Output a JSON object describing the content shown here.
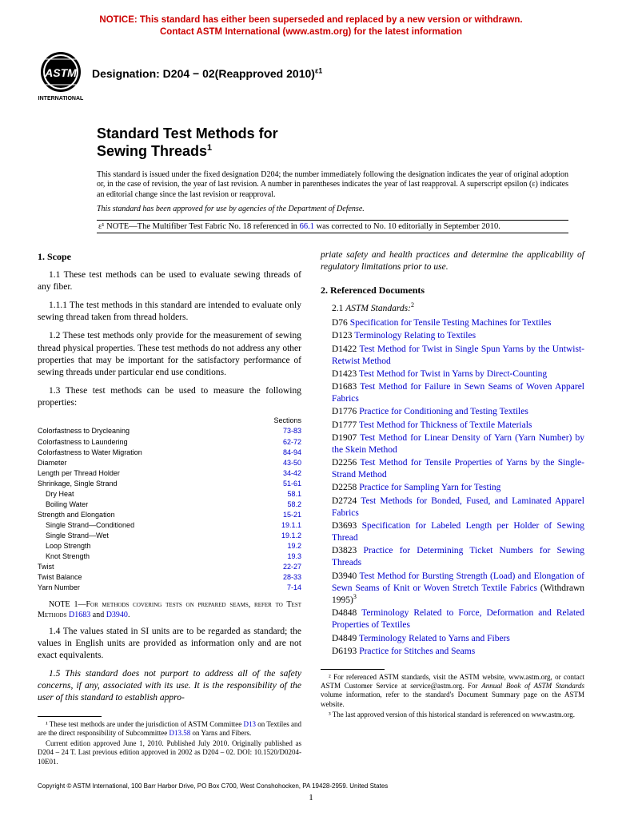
{
  "notice": {
    "line1": "NOTICE: This standard has either been superseded and replaced by a new version or withdrawn.",
    "line2": "Contact ASTM International (www.astm.org) for the latest information",
    "color": "#cc0000"
  },
  "logo": {
    "top_text": "ASTM",
    "bottom_text": "INTERNATIONAL"
  },
  "designation": {
    "label": "Designation: D204 − 02(Reapproved 2010)",
    "superscript": "ε1"
  },
  "title": {
    "line1": "Standard Test Methods for",
    "line2": "Sewing Threads",
    "superscript": "1"
  },
  "intro": {
    "p1": "This standard is issued under the fixed designation D204; the number immediately following the designation indicates the year of original adoption or, in the case of revision, the year of last revision. A number in parentheses indicates the year of last reapproval. A superscript epsilon (ε) indicates an editorial change since the last revision or reapproval.",
    "p2": "This standard has been approved for use by agencies of the Department of Defense."
  },
  "note_box": {
    "prefix": "ε¹ NOTE—The Multifiber Test Fabric No. 18 referenced in ",
    "ref": "66.1",
    "suffix": " was corrected to No. 10 editorially in September 2010."
  },
  "left": {
    "scope_head": "1. Scope",
    "p11": "1.1 These test methods can be used to evaluate sewing threads of any fiber.",
    "p111": "1.1.1 The test methods in this standard are intended to evaluate only sewing thread taken from thread holders.",
    "p12": "1.2 These test methods only provide for the measurement of sewing thread physical properties. These test methods do not address any other properties that may be important for the satisfactory performance of sewing threads under particular end use conditions.",
    "p13": "1.3 These test methods can be used to measure the following properties:",
    "table_hdr": "Sections",
    "table": [
      {
        "label": "Colorfastness to Drycleaning",
        "sec": "73-83",
        "indent": 0
      },
      {
        "label": "Colorfastness to Laundering",
        "sec": "62-72",
        "indent": 0
      },
      {
        "label": "Colorfastness to Water Migration",
        "sec": "84-94",
        "indent": 0
      },
      {
        "label": "Diameter",
        "sec": "43-50",
        "indent": 0
      },
      {
        "label": "Length per Thread Holder",
        "sec": "34-42",
        "indent": 0
      },
      {
        "label": "Shrinkage, Single Strand",
        "sec": "51-61",
        "indent": 0
      },
      {
        "label": "Dry Heat",
        "sec": "58.1",
        "indent": 1
      },
      {
        "label": "Boiling Water",
        "sec": "58.2",
        "indent": 1
      },
      {
        "label": "Strength and Elongation",
        "sec": "15-21",
        "indent": 0
      },
      {
        "label": "Single Strand—Conditioned",
        "sec": "19.1.1",
        "indent": 1
      },
      {
        "label": "Single Strand—Wet",
        "sec": "19.1.2",
        "indent": 1
      },
      {
        "label": "Loop Strength",
        "sec": "19.2",
        "indent": 1
      },
      {
        "label": "Knot Strength",
        "sec": "19.3",
        "indent": 1
      },
      {
        "label": "Twist",
        "sec": "22-27",
        "indent": 0
      },
      {
        "label": "Twist Balance",
        "sec": "28-33",
        "indent": 0
      },
      {
        "label": "Yarn Number",
        "sec": "7-14",
        "indent": 0
      }
    ],
    "note1_prefix": "NOTE 1—For methods covering tests on prepared seams, refer to Test Methods ",
    "note1_ref1": "D1683",
    "note1_mid": " and ",
    "note1_ref2": "D3940",
    "note1_suffix": ".",
    "p14": "1.4 The values stated in SI units are to be regarded as standard; the values in English units are provided as information only and are not exact equivalents.",
    "p15": "1.5 This standard does not purport to address all of the safety concerns, if any, associated with its use. It is the responsibility of the user of this standard to establish appro-",
    "fn1a_prefix": "¹ These test methods are under the jurisdiction of ASTM Committee ",
    "fn1a_link1": "D13",
    "fn1a_mid": " on Textiles and are the direct responsibility of Subcommittee ",
    "fn1a_link2": "D13.58",
    "fn1a_suffix": " on Yarns and Fibers.",
    "fn1b": "Current edition approved June 1, 2010. Published July 2010. Originally published as D204 – 24 T. Last previous edition approved in 2002 as D204 – 02. DOI: 10.1520/D0204-10E01."
  },
  "right": {
    "cont": "priate safety and health practices and determine the applicability of regulatory limitations prior to use.",
    "ref_head": "2. Referenced Documents",
    "sub21_prefix": "2.1 ",
    "sub21_italic": "ASTM Standards:",
    "sub21_sup": "2",
    "refs": [
      {
        "code": "D76",
        "title": "Specification for Tensile Testing Machines for Textiles"
      },
      {
        "code": "D123",
        "title": "Terminology Relating to Textiles"
      },
      {
        "code": "D1422",
        "title": "Test Method for Twist in Single Spun Yarns by the Untwist-Retwist Method"
      },
      {
        "code": "D1423",
        "title": "Test Method for Twist in Yarns by Direct-Counting"
      },
      {
        "code": "D1683",
        "title": "Test Method for Failure in Sewn Seams of Woven Apparel Fabrics"
      },
      {
        "code": "D1776",
        "title": "Practice for Conditioning and Testing Textiles"
      },
      {
        "code": "D1777",
        "title": "Test Method for Thickness of Textile Materials"
      },
      {
        "code": "D1907",
        "title": "Test Method for Linear Density of Yarn (Yarn Number) by the Skein Method"
      },
      {
        "code": "D2256",
        "title": "Test Method for Tensile Properties of Yarns by the Single-Strand Method"
      },
      {
        "code": "D2258",
        "title": "Practice for Sampling Yarn for Testing"
      },
      {
        "code": "D2724",
        "title": "Test Methods for Bonded, Fused, and Laminated Apparel Fabrics"
      },
      {
        "code": "D3693",
        "title": "Specification for Labeled Length per Holder of Sewing Thread"
      },
      {
        "code": "D3823",
        "title": "Practice for Determining Ticket Numbers for Sewing Threads"
      },
      {
        "code": "D3940",
        "title": "Test Method for Bursting Strength (Load) and Elongation of Sewn Seams of Knit or Woven Stretch Textile Fabrics",
        "extra": " (Withdrawn 1995)",
        "extrasup": "3"
      },
      {
        "code": "D4848",
        "title": "Terminology Related to Force, Deformation and Related Properties of Textiles"
      },
      {
        "code": "D4849",
        "title": "Terminology Related to Yarns and Fibers"
      },
      {
        "code": "D6193",
        "title": "Practice for Stitches and Seams"
      }
    ],
    "fn2_prefix": "² For referenced ASTM standards, visit the ASTM website, www.astm.org, or contact ASTM Customer Service at service@astm.org. For ",
    "fn2_italic": "Annual Book of ASTM Standards",
    "fn2_suffix": " volume information, refer to the standard's Document Summary page on the ASTM website.",
    "fn3": "³ The last approved version of this historical standard is referenced on www.astm.org."
  },
  "copyright": "Copyright © ASTM International, 100 Barr Harbor Drive, PO Box C700, West Conshohocken, PA 19428-2959. United States",
  "pagenum": "1",
  "link_color": "#0000cc"
}
